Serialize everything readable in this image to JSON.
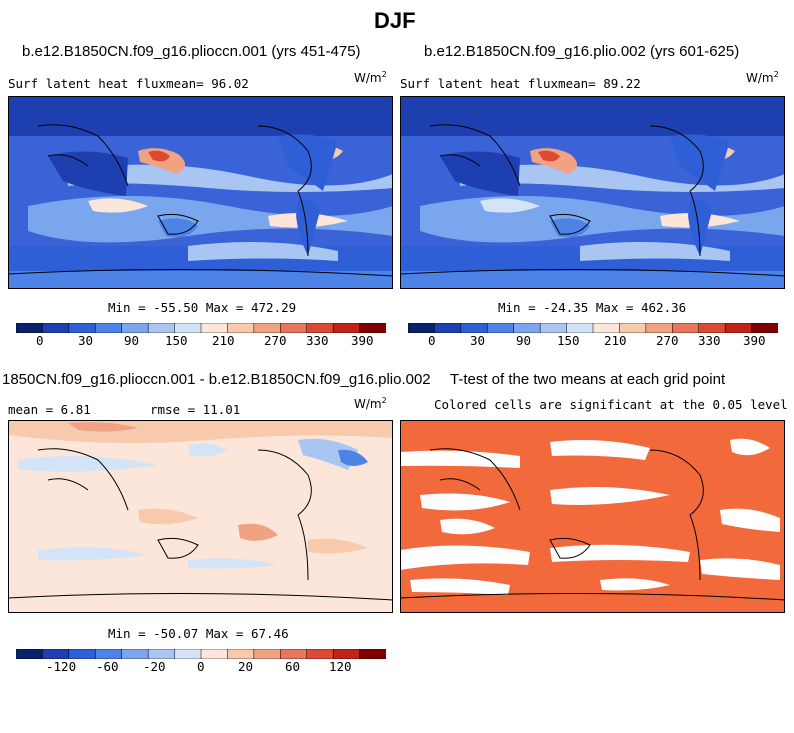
{
  "figure_title": "DJF",
  "panels": [
    {
      "title": "b.e12.B1850CN.f09_g16.plioccn.001 (yrs 451-475)",
      "subtitle": "Surf latent heat fluxmean=  96.02",
      "units_base": "W/m",
      "units_exp": "2",
      "minmax": "Min = -55.50 Max = 472.29",
      "colorbar_ticks": [
        "0",
        "30",
        "90",
        "150",
        "210",
        "270",
        "330",
        "390"
      ]
    },
    {
      "title": "b.e12.B1850CN.f09_g16.plio.002 (yrs 601-625)",
      "subtitle": "Surf latent heat fluxmean=  89.22",
      "units_base": "W/m",
      "units_exp": "2",
      "minmax": "Min = -24.35 Max = 462.36",
      "colorbar_ticks": [
        "0",
        "30",
        "90",
        "150",
        "210",
        "270",
        "330",
        "390"
      ]
    },
    {
      "title": "1850CN.f09_g16.plioccn.001 - b.e12.B1850CN.f09_g16.plio.002",
      "subtitle_left": "mean =   6.81",
      "subtitle_mid": "rmse =  11.01",
      "units_base": "W/m",
      "units_exp": "2",
      "minmax": "Min = -50.07 Max = 67.46",
      "colorbar_ticks": [
        "-120",
        "-60",
        "-20",
        "0",
        "20",
        "60",
        "120"
      ]
    },
    {
      "title": "T-test of the two means at each grid point",
      "subtitle": "Colored cells are significant at the 0.05 level"
    }
  ],
  "colors": {
    "abs_scale": [
      "#08216b",
      "#1d3fb0",
      "#2f5fd6",
      "#4d82e6",
      "#7aa6ee",
      "#a9c6f3",
      "#d4e4f7",
      "#fbe6d9",
      "#f7c9ad",
      "#f1a283",
      "#e8765a",
      "#dc4a34",
      "#bf2416",
      "#800000"
    ],
    "diff_scale": [
      "#08216b",
      "#1d3fb0",
      "#2f5fd6",
      "#4d82e6",
      "#7aa6ee",
      "#a9c6f3",
      "#d4e4f7",
      "#fbe6d9",
      "#f7c9ad",
      "#f1a283",
      "#e8765a",
      "#dc4a34",
      "#bf2416",
      "#800000"
    ],
    "significance": "#f26a3c"
  }
}
